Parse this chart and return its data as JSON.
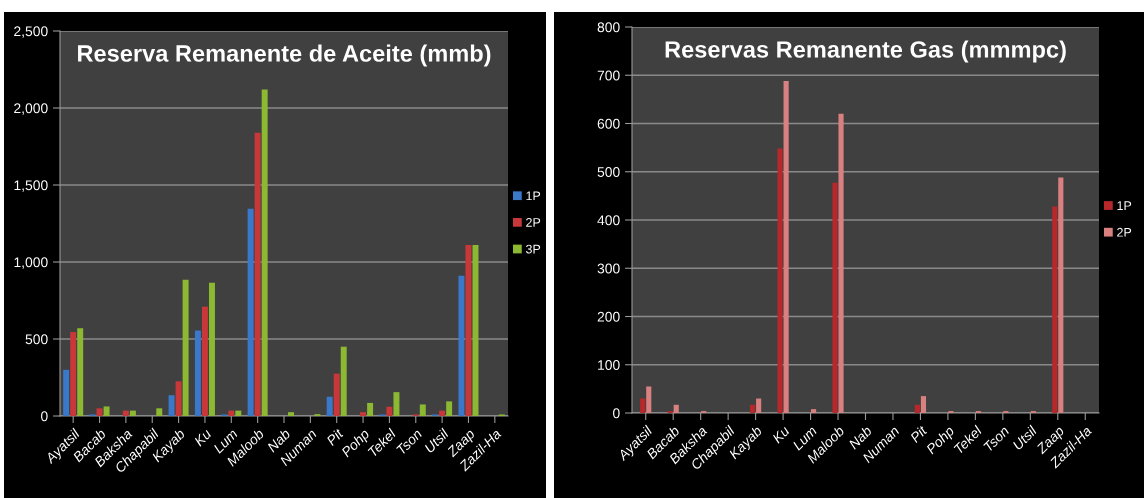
{
  "chart_data": [
    {
      "type": "bar",
      "title": "Reserva Remanente de Aceite (mmb)",
      "categories": [
        "Ayatsil",
        "Bacab",
        "Baksha",
        "Chapabil",
        "Kayab",
        "Ku",
        "Lum",
        "Maloob",
        "Nab",
        "Numan",
        "Pit",
        "Pohp",
        "Tekel",
        "Tson",
        "Utsil",
        "Zaap",
        "Zazil-Ha"
      ],
      "series": [
        {
          "name": "1P",
          "color": "#3a78c9",
          "values": [
            300,
            10,
            0,
            0,
            135,
            555,
            10,
            1345,
            0,
            0,
            125,
            0,
            10,
            0,
            10,
            910,
            0
          ]
        },
        {
          "name": "2P",
          "color": "#c8383a",
          "values": [
            545,
            50,
            35,
            null,
            225,
            710,
            35,
            1840,
            0,
            0,
            275,
            25,
            60,
            10,
            35,
            1110,
            0
          ]
        },
        {
          "name": "3P",
          "color": "#8cb832",
          "values": [
            570,
            62,
            35,
            50,
            885,
            865,
            35,
            2120,
            25,
            12,
            450,
            85,
            155,
            75,
            95,
            1110,
            10
          ]
        }
      ],
      "ylim": [
        0,
        2500
      ],
      "yticks": [
        0,
        {
          "value": 500,
          "label": "500"
        },
        {
          "value": 1000,
          "label": "1,000"
        },
        {
          "value": 1500,
          "label": "1,500"
        },
        {
          "value": 2000,
          "label": "2,000"
        },
        {
          "value": 2500,
          "label": "2,500"
        }
      ],
      "grid": "y",
      "legend": "right"
    },
    {
      "type": "bar",
      "title": "Reservas Remanente Gas (mmmpc)",
      "categories": [
        "Ayatsil",
        "Bacab",
        "Baksha",
        "Chapabil",
        "Kayab",
        "Ku",
        "Lum",
        "Maloob",
        "Nab",
        "Numan",
        "Pit",
        "Pohp",
        "Tekel",
        "Tson",
        "Utsil",
        "Zaap",
        "Zazil-Ha"
      ],
      "series": [
        {
          "name": "1P",
          "color": "#b8282a",
          "values": [
            30,
            4,
            0,
            0,
            17,
            548,
            0,
            477,
            0,
            0,
            17,
            0,
            0,
            0,
            0,
            428,
            0
          ]
        },
        {
          "name": "2P",
          "color": "#d98080",
          "values": [
            55,
            17,
            4,
            0,
            30,
            688,
            8,
            620,
            0,
            0,
            35,
            4,
            4,
            4,
            4,
            488,
            0
          ]
        }
      ],
      "ylim": [
        0,
        800
      ],
      "yticks": [
        0,
        100,
        200,
        300,
        400,
        500,
        600,
        700,
        800
      ],
      "grid": "y",
      "legend": "right"
    }
  ]
}
